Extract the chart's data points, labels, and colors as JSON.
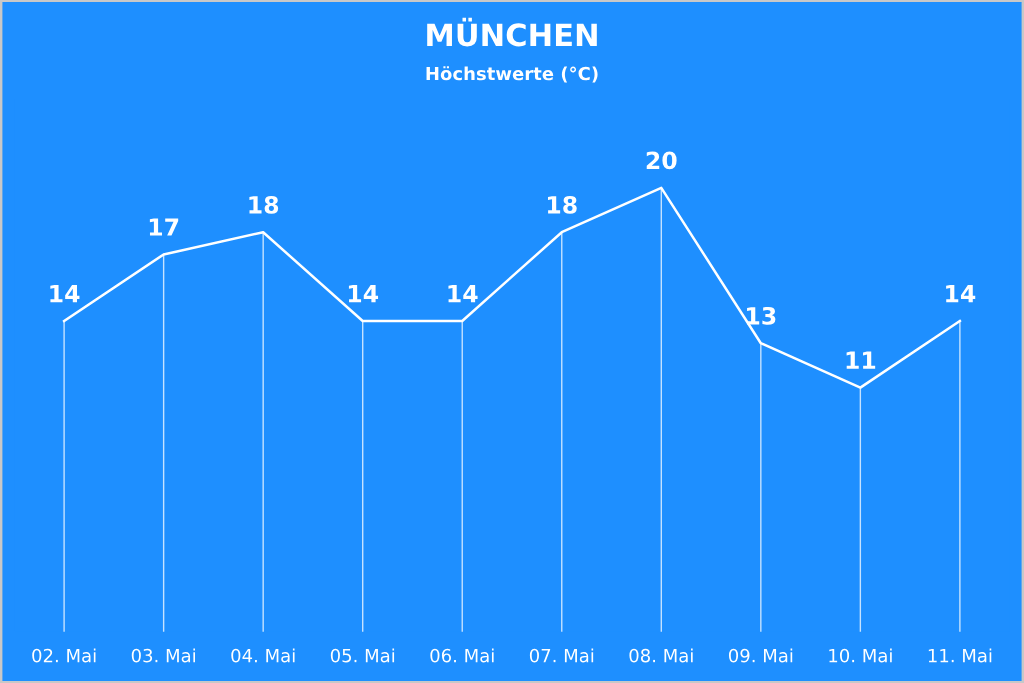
{
  "chart_data": {
    "type": "line",
    "title": "MÜNCHEN",
    "subtitle": "Höchstwerte (°C)",
    "categories": [
      "02. Mai",
      "03. Mai",
      "04. Mai",
      "05. Mai",
      "06. Mai",
      "07. Mai",
      "08. Mai",
      "09. Mai",
      "10. Mai",
      "11. Mai"
    ],
    "series": [
      {
        "color": "#ffffff",
        "values": [
          14,
          17,
          18,
          14,
          14,
          18,
          20,
          13,
          11,
          14
        ]
      }
    ],
    "relative": false,
    "data_labels": true,
    "grid": "x",
    "legend": false,
    "marker": "none",
    "line_style": "solid",
    "tick_labels": "x"
  }
}
